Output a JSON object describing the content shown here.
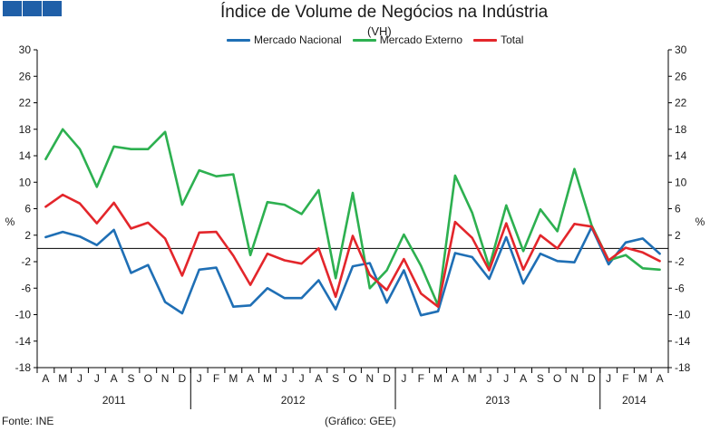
{
  "brand": {
    "color": "#1f5fa8",
    "squares": 3
  },
  "title": "Índice de Volume de Negócios na Indústria",
  "subtitle": "(VH)",
  "footer": {
    "source": "Fonte: INE",
    "credit": "(Gráfico: GEE)"
  },
  "chart_data": {
    "type": "line",
    "ylabel_left": "%",
    "ylabel_right": "%",
    "ylim": [
      -18,
      30
    ],
    "yticks": [
      30,
      26,
      22,
      18,
      14,
      10,
      6,
      2,
      -2,
      -6,
      -10,
      -14,
      -18
    ],
    "ytick_labels": [
      "30",
      "26",
      "22",
      "18",
      "14",
      "10",
      "6",
      "2",
      "-2",
      "-6",
      "-10",
      "-14",
      "-18"
    ],
    "x": [
      "A",
      "M",
      "J",
      "J",
      "A",
      "S",
      "O",
      "N",
      "D",
      "J",
      "F",
      "M",
      "A",
      "M",
      "J",
      "J",
      "A",
      "S",
      "O",
      "N",
      "D",
      "J",
      "F",
      "M",
      "A",
      "M",
      "J",
      "J",
      "A",
      "S",
      "O",
      "N",
      "D",
      "J",
      "F",
      "M",
      "A"
    ],
    "years": [
      {
        "label": "2011",
        "start": 0,
        "end": 8
      },
      {
        "label": "2012",
        "start": 9,
        "end": 20
      },
      {
        "label": "2013",
        "start": 21,
        "end": 32
      },
      {
        "label": "2014",
        "start": 33,
        "end": 36
      }
    ],
    "series": [
      {
        "name": "Mercado Nacional",
        "color": "#1f6fb5",
        "values": [
          1.7,
          2.5,
          1.8,
          0.5,
          2.8,
          -3.7,
          -2.5,
          -8.1,
          -9.8,
          -3.2,
          -2.9,
          -8.8,
          -8.6,
          -6.0,
          -7.5,
          -7.5,
          -4.8,
          -9.2,
          -2.7,
          -2.2,
          -8.2,
          -3.3,
          -10.1,
          -9.5,
          -0.7,
          -1.3,
          -4.6,
          1.7,
          -5.3,
          -0.8,
          -1.9,
          -2.1,
          3.2,
          -2.4,
          0.9,
          1.5,
          -0.8
        ]
      },
      {
        "name": "Mercado Externo",
        "color": "#2db050",
        "values": [
          13.5,
          18.0,
          15.0,
          9.3,
          15.4,
          15.0,
          15.0,
          17.6,
          6.6,
          11.8,
          10.9,
          11.2,
          -1.0,
          7.0,
          6.6,
          5.2,
          8.8,
          -4.5,
          8.4,
          -6.0,
          -3.3,
          2.1,
          -2.6,
          -8.6,
          11.0,
          5.4,
          -2.8,
          6.5,
          -0.4,
          5.9,
          2.6,
          12.0,
          3.5,
          -1.8,
          -1.0,
          -3.0,
          -3.2
        ]
      },
      {
        "name": "Total",
        "color": "#e3262b",
        "values": [
          6.3,
          8.1,
          6.8,
          3.8,
          6.9,
          3.0,
          3.9,
          1.5,
          -4.1,
          2.4,
          2.5,
          -1.1,
          -5.5,
          -0.8,
          -1.8,
          -2.3,
          0.0,
          -7.3,
          1.9,
          -4.0,
          -6.3,
          -1.6,
          -6.8,
          -8.8,
          4.0,
          1.6,
          -3.3,
          3.8,
          -3.2,
          2.0,
          0.0,
          3.7,
          3.3,
          -1.8,
          0.1,
          -0.6,
          -1.9
        ]
      }
    ],
    "legend_position": "top"
  }
}
